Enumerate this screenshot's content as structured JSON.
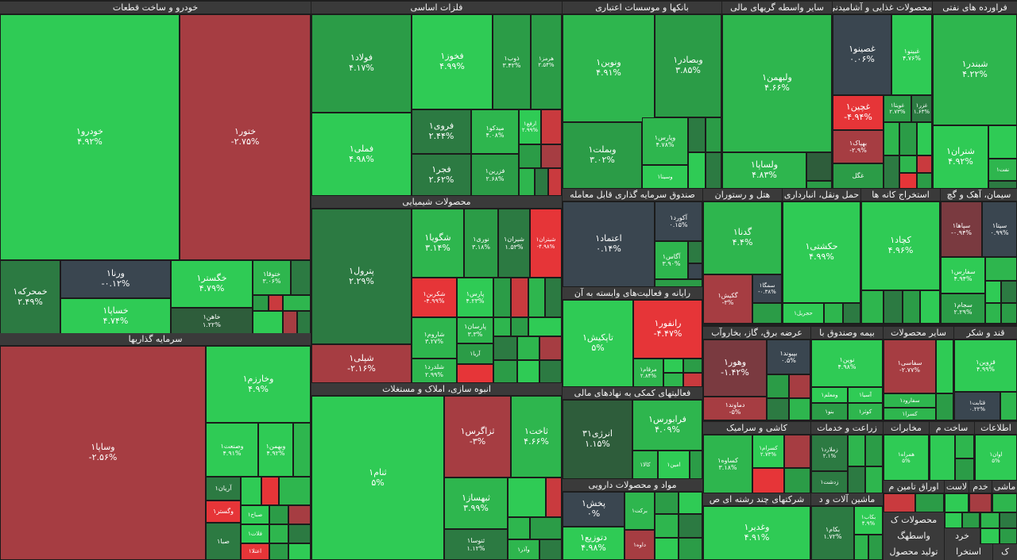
{
  "sectors": {
    "khodro": {
      "title": "خودرو و ساخت قطعات"
    },
    "felezat": {
      "title": "فلزات اساسی"
    },
    "bank": {
      "title": "بانکها و موسسات اعتباری"
    },
    "vasete": {
      "title": "سایر واسطه گریهای مالی"
    },
    "ghaza": {
      "title": "محصولات غذایی و آشامیدنی"
    },
    "naft": {
      "title": "فراورده های نفتی"
    },
    "sarmaye": {
      "title": "سرمایه گذاریها"
    },
    "shimi": {
      "title": "محصولات شیمیایی"
    },
    "sandogh": {
      "title": "صندوق سرمایه گذاری قابل معامله"
    },
    "hotel": {
      "title": "هتل و رستوران"
    },
    "haml": {
      "title": "حمل ونقل، انبارداری"
    },
    "estekhraj": {
      "title": "استخراج کانه ها"
    },
    "siman": {
      "title": "سیمان، آهک و گچ"
    },
    "rayane": {
      "title": "رایانه و فعالیت‌های وابسته به آن"
    },
    "anbooh": {
      "title": "انبوه سازی، املاک و مستغلات"
    },
    "komaki": {
      "title": "فعالیتهای کمکی به نهادهای مالی"
    },
    "bargh": {
      "title": "عرضه برق، گاز، بخاروآب"
    },
    "bime": {
      "title": "بیمه وصندوق با"
    },
    "sayer": {
      "title": "سایر محصولات"
    },
    "ghand": {
      "title": "قند و شکر"
    },
    "kashi": {
      "title": "کاشی و سرامیک"
    },
    "zeraat": {
      "title": "زراعت و خدمات"
    },
    "mokhaberat": {
      "title": "مخابرات"
    },
    "sakht": {
      "title": "ساخت م"
    },
    "ettelaat": {
      "title": "اطلاعات"
    },
    "daroo": {
      "title": "مواد و محصولات دارویی"
    },
    "mashin": {
      "title": "ماشین آلات و د"
    },
    "chand": {
      "title": "شرکتهای چند رشته ای ص"
    }
  },
  "tiles": {
    "khodro1": {
      "name": "خودرو۱",
      "pct": "۴.۹۲%"
    },
    "khatoor1": {
      "name": "ختور۱",
      "pct": "-۲.۷۵%"
    },
    "khamharke1": {
      "name": "خمحرکه۱",
      "pct": "۲.۴۹%"
    },
    "verena1": {
      "name": "ورنا۱",
      "pct": "-۰.۱۲%"
    },
    "khegostar1": {
      "name": "خگستر۱",
      "pct": "۴.۷۹%"
    },
    "khetooga1": {
      "name": "ختوقا۱",
      "pct": "۳.۰۶%"
    },
    "khesapa1": {
      "name": "خساپا۱",
      "pct": "۴.۷۴%"
    },
    "khahan1": {
      "name": "خاهن۱",
      "pct": "۱.۲۲%"
    },
    "folad1": {
      "name": "فولاد۱",
      "pct": "۴.۱۷%"
    },
    "fakhooz1": {
      "name": "فخوز۱",
      "pct": "۴.۹۹%"
    },
    "zob1": {
      "name": "ذوب۱",
      "pct": "۳.۴۲%"
    },
    "harmoz1": {
      "name": "هرمز۱",
      "pct": "۲.۵۴%"
    },
    "famli1": {
      "name": "فملی۱",
      "pct": "۴.۹۸%"
    },
    "faravi1": {
      "name": "فروی۱",
      "pct": "۲.۴۴%"
    },
    "faja1": {
      "name": "فجر۱",
      "pct": "۲.۶۲%"
    },
    "midko1": {
      "name": "میدکو۱",
      "pct": "۴.۰۸%"
    },
    "fazarin1": {
      "name": "فزرین۱",
      "pct": "۲.۶۸%"
    },
    "arfa1": {
      "name": "ارفع۱",
      "pct": "۲.۹۹%"
    },
    "vanovin1": {
      "name": "ونوین۱",
      "pct": "۴.۹۱%"
    },
    "vebsader1": {
      "name": "وبصادر۱",
      "pct": "۳.۸۵%"
    },
    "vebmellat1": {
      "name": "وبملت۱",
      "pct": "۳.۰۲%"
    },
    "vepars1": {
      "name": "وپارس۱",
      "pct": "۴.۷۸%"
    },
    "vesina1": {
      "name": "وسینا۱"
    },
    "velbahman1": {
      "name": "ولبهمن۱",
      "pct": "۴.۶۶%"
    },
    "velsapa1": {
      "name": "ولساپا۱",
      "pct": "۴.۸۳%"
    },
    "ghasino1": {
      "name": "غصینو۱",
      "pct": "۰.۰۶%"
    },
    "gheyno1": {
      "name": "غبینو۱",
      "pct": "۴.۷۶%"
    },
    "ghchin1": {
      "name": "غچین۱",
      "pct": "-۴.۹۴%"
    },
    "ghgol": {
      "name": "غگل"
    },
    "ghoonita1": {
      "name": "غویتا۱",
      "pct": "۲.۷۳%"
    },
    "ghazar1": {
      "name": "غزر۱",
      "pct": "۱.۶۳%"
    },
    "behpak1": {
      "name": "بهپاک۱",
      "pct": "-۲.۹%"
    },
    "shebandar1": {
      "name": "شبندر۱",
      "pct": "۴.۲۲%"
    },
    "shetran1": {
      "name": "شتران۱",
      "pct": "۴.۹۲%"
    },
    "nafti1": {
      "name": "نفت۱"
    },
    "vesapa1": {
      "name": "وساپا۱",
      "pct": "-۲.۵۶%"
    },
    "vekharazm1": {
      "name": "وخارزم۱",
      "pct": "۴.۹%"
    },
    "vesanat1": {
      "name": "وصنعت۱",
      "pct": "۴.۹۱%"
    },
    "vebahman1": {
      "name": "وبهمن۱",
      "pct": "۴.۹۲%"
    },
    "aryan1": {
      "name": "آریان۱"
    },
    "vegostar1": {
      "name": "وگستر۱"
    },
    "saba1": {
      "name": "صبا۱"
    },
    "sabah1": {
      "name": "صباح۱"
    },
    "fela1": {
      "name": "فلات۱"
    },
    "etela1": {
      "name": "اعتلا۱"
    },
    "petrol1": {
      "name": "پترول۱",
      "pct": "۲.۲۹%"
    },
    "shegooya1": {
      "name": "شگویا۱",
      "pct": "۳.۱۴%"
    },
    "noori1": {
      "name": "نوری۱",
      "pct": "۳.۱۸%"
    },
    "shiran1": {
      "name": "شیران۱",
      "pct": "۱.۵۳%"
    },
    "shitran1": {
      "name": "شیتران۱",
      "pct": "-۴.۹۸%"
    },
    "shekarbon1": {
      "name": "شکربن۱",
      "pct": "-۴.۹۹%"
    },
    "pars1": {
      "name": "پارس۱",
      "pct": "۴.۲۳%"
    },
    "sharoom1": {
      "name": "شاروم۱",
      "pct": "۳.۲۷%"
    },
    "parsan1": {
      "name": "پارسان۱",
      "pct": "۳.۳%"
    },
    "arya1": {
      "name": "آریا۱"
    },
    "sheli1": {
      "name": "شپلی۱",
      "pct": "-۲.۱۶%"
    },
    "sheldard1": {
      "name": "شلدرد۱",
      "pct": "۲.۹۹%"
    },
    "etemad1": {
      "name": "اعتماد۱",
      "pct": "۰.۱۴%"
    },
    "agord1": {
      "name": "آکورد۱",
      "pct": "۰.۱۵%"
    },
    "agas1": {
      "name": "آگاس۱",
      "pct": "۳.۹۰%"
    },
    "gadna1": {
      "name": "گدنا۱",
      "pct": "۴.۴%"
    },
    "gakish1": {
      "name": "گکیش۱",
      "pct": "-۳%"
    },
    "semga1": {
      "name": "سمگا۱",
      "pct": "-۰.۳۸%"
    },
    "hekashti1": {
      "name": "حکشتی۱",
      "pct": "۴.۹۹%"
    },
    "hojril1": {
      "name": "حجریل۱"
    },
    "kechad1": {
      "name": "کچاد۱",
      "pct": "۴.۹۶%"
    },
    "sefars1": {
      "name": "سفارس۱",
      "pct": "۴.۹۴%"
    },
    "sejam1": {
      "name": "سجام۱",
      "pct": "۲.۲۹%"
    },
    "sipaha1": {
      "name": "سپاها۱",
      "pct": "-۰.۹۴%"
    },
    "sita1": {
      "name": "سیتا۱",
      "pct": "۰.۹۹%"
    },
    "tapkish1": {
      "name": "تاپکیش۱",
      "pct": "۵%"
    },
    "ranfor1": {
      "name": "رانفور۱",
      "pct": "-۴.۴۷%"
    },
    "morgham1": {
      "name": "مرقام۱",
      "pct": "۲.۸۴%"
    },
    "sanam1": {
      "name": "ثنام۱",
      "pct": "۵%"
    },
    "sazgars1": {
      "name": "ثزاگرس۱",
      "pct": "-۳%"
    },
    "sakht1": {
      "name": "ثاخت۱",
      "pct": "۴.۶۶%"
    },
    "sebahsaz1": {
      "name": "ثبهساز۱",
      "pct": "۳.۹۹%"
    },
    "sanosa1": {
      "name": "ثنوسا۱",
      "pct": "۱.۱۲%"
    },
    "vaadra1": {
      "name": "وآذر۱"
    },
    "anerzhi31": {
      "name": "انرژی۳۱",
      "pct": "۱.۱۵%"
    },
    "faraboors1": {
      "name": "فرابورس۱",
      "pct": "۴.۰۹%"
    },
    "kala1": {
      "name": "کالا۱"
    },
    "amin1": {
      "name": "امین۱"
    },
    "vahoor1": {
      "name": "وهور۱",
      "pct": "-۱.۴۲%"
    },
    "bepiyand1": {
      "name": "بپیوند۱",
      "pct": "۰.۵%"
    },
    "damavand1": {
      "name": "دماوند۱",
      "pct": "-۵%"
    },
    "novin1": {
      "name": "نوین۱",
      "pct": "۴.۹۸%"
    },
    "asiya1": {
      "name": "آسیا۱"
    },
    "vemolem1": {
      "name": "ومعلم۱"
    },
    "bano1": {
      "name": "بنو۱"
    },
    "kowsar1": {
      "name": "کوثر۱"
    },
    "sefaasi1": {
      "name": "سفاسی۱",
      "pct": "-۲.۷۷%"
    },
    "safarood1": {
      "name": "سفارود۱"
    },
    "kesra1": {
      "name": "کسرا۱"
    },
    "ghazvin1": {
      "name": "قزوین۱",
      "pct": "۴.۹۹%"
    },
    "ghasabet1": {
      "name": "قثابت۱",
      "pct": "۰.۲۲%"
    },
    "kesava1": {
      "name": "کساوه۱",
      "pct": "۳.۱۸%"
    },
    "kesrami1": {
      "name": "کسرام۱",
      "pct": "۲.۷۳%"
    },
    "zemalard1": {
      "name": "زملارد۱",
      "pct": "۲.۱%"
    },
    "zedasht1": {
      "name": "زدشت۱"
    },
    "hamrah1": {
      "name": "همراه۱",
      "pct": "۵%"
    },
    "alaat1": {
      "name": "اوان۱",
      "pct": "۵%"
    },
    "pakhsh1": {
      "name": "پخش۱",
      "pct": "۰%"
    },
    "dtozi1": {
      "name": "دتوزیع۱",
      "pct": "۴.۹۸%"
    },
    "barkat1": {
      "name": "برکت۱"
    },
    "dava1": {
      "name": "داوه۱"
    },
    "bekam1": {
      "name": "بکام۱",
      "pct": "۱.۷۲%"
    },
    "bekab1": {
      "name": "بکاب۱",
      "pct": "۴.۹%"
    },
    "vaghadir1": {
      "name": "وغدیر۱",
      "pct": "۴.۹۱%"
    },
    "amin_tamin": {
      "name": "اوراق تامین م"
    },
    "lasat": {
      "name": "لاست"
    },
    "khadam": {
      "name": "خدم"
    },
    "mashi": {
      "name": "ماشی"
    },
    "mahsoolat_k": {
      "name": "محصولات ک"
    },
    "khord": {
      "name": "خرد"
    },
    "vasetegh": {
      "name": "واسطهگ"
    },
    "tolid_mahsool": {
      "name": "تولید محصول"
    },
    "estekhra": {
      "name": "استخرا"
    },
    "k": {
      "name": "ک"
    }
  }
}
